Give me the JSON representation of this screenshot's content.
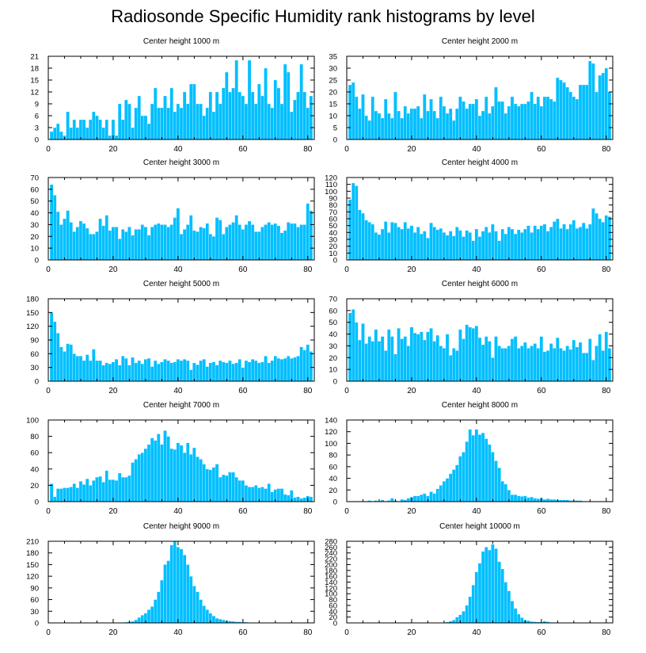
{
  "figure": {
    "title": "Radiosonde Specific Humidity rank histograms by level",
    "bar_color": "#00bfff"
  },
  "chart_data": [
    {
      "type": "bar",
      "title": "Center height 1000 m",
      "x_start": 1,
      "xlim": [
        0,
        82
      ],
      "xticks": [
        0,
        20,
        40,
        60,
        80
      ],
      "ylim": [
        0,
        21
      ],
      "yticks": [
        0,
        3,
        6,
        9,
        12,
        15,
        18,
        21
      ],
      "values": [
        2,
        3,
        4,
        2,
        1,
        7,
        3,
        5,
        3,
        5,
        5,
        3,
        5,
        7,
        6,
        5,
        3,
        5,
        1,
        5,
        1,
        9,
        5,
        10,
        9,
        3,
        8,
        11,
        6,
        6,
        4,
        9,
        13,
        8,
        8,
        11,
        8,
        13,
        7,
        9,
        8,
        12,
        9,
        14,
        14,
        9,
        9,
        6,
        8,
        12,
        7,
        12,
        9,
        13,
        17,
        12,
        13,
        20,
        12,
        11,
        9,
        20,
        12,
        9,
        14,
        11,
        18,
        9,
        8,
        15,
        13,
        9,
        19,
        17,
        7,
        10,
        12,
        19,
        12,
        8,
        11
      ],
      "display_values": []
    },
    {
      "type": "bar",
      "title": "Center height 2000 m",
      "x_start": 1,
      "xlim": [
        0,
        82
      ],
      "xticks": [
        0,
        20,
        40,
        60,
        80
      ],
      "ylim": [
        0,
        35
      ],
      "yticks": [
        0,
        5,
        10,
        15,
        20,
        25,
        30,
        35
      ],
      "values": [
        23,
        24,
        18,
        13,
        19,
        10,
        8,
        18,
        12,
        11,
        9,
        17,
        11,
        9,
        20,
        12,
        9,
        14,
        11,
        13,
        13,
        14,
        9,
        19,
        12,
        17,
        12,
        9,
        18,
        14,
        11,
        13,
        8,
        13,
        18,
        16,
        13,
        15,
        15,
        17,
        10,
        12,
        18,
        11,
        14,
        22,
        16,
        16,
        11,
        14,
        18,
        15,
        14,
        15,
        15,
        16,
        20,
        15,
        18,
        14,
        18,
        18,
        17,
        16,
        26,
        25,
        24,
        22,
        20,
        18,
        17,
        23,
        23,
        23,
        33,
        32,
        20,
        27,
        28,
        30,
        20
      ],
      "display_values": []
    },
    {
      "type": "bar",
      "title": "Center height 3000 m",
      "x_start": 1,
      "xlim": [
        0,
        82
      ],
      "xticks": [
        0,
        20,
        40,
        60,
        80
      ],
      "ylim": [
        0,
        70
      ],
      "yticks": [
        0,
        10,
        20,
        30,
        40,
        50,
        60,
        70
      ],
      "values": [
        64,
        55,
        41,
        30,
        35,
        42,
        32,
        24,
        28,
        33,
        31,
        27,
        22,
        22,
        24,
        35,
        29,
        38,
        25,
        28,
        28,
        18,
        26,
        24,
        28,
        21,
        26,
        26,
        30,
        28,
        21,
        28,
        30,
        31,
        30,
        30,
        28,
        30,
        36,
        44,
        22,
        26,
        30,
        38,
        25,
        24,
        28,
        27,
        31,
        22,
        20,
        36,
        34,
        22,
        28,
        30,
        32,
        38,
        30,
        26,
        30,
        33,
        30,
        24,
        24,
        28,
        30,
        32,
        30,
        31,
        29,
        23,
        25,
        32,
        31,
        31,
        28,
        30,
        30,
        48,
        42
      ],
      "display_values": []
    },
    {
      "type": "bar",
      "title": "Center height 4000 m",
      "x_start": 1,
      "xlim": [
        0,
        82
      ],
      "xticks": [
        0,
        20,
        40,
        60,
        80
      ],
      "ylim": [
        0,
        120
      ],
      "yticks": [
        0,
        10,
        20,
        30,
        40,
        50,
        60,
        70,
        80,
        90,
        100,
        110,
        120
      ],
      "values": [
        88,
        112,
        108,
        73,
        68,
        58,
        55,
        52,
        40,
        37,
        45,
        56,
        40,
        55,
        54,
        48,
        45,
        55,
        46,
        50,
        40,
        48,
        38,
        42,
        32,
        54,
        48,
        44,
        46,
        40,
        36,
        42,
        35,
        48,
        43,
        34,
        43,
        40,
        28,
        45,
        34,
        42,
        48,
        40,
        52,
        42,
        28,
        45,
        38,
        48,
        45,
        38,
        44,
        40,
        45,
        50,
        40,
        50,
        45,
        50,
        52,
        42,
        48,
        56,
        60,
        46,
        52,
        45,
        52,
        58,
        46,
        48,
        54,
        46,
        52,
        75,
        68,
        60,
        55,
        65,
        63
      ],
      "display_values": []
    },
    {
      "type": "bar",
      "title": "Center height 5000 m",
      "x_start": 1,
      "xlim": [
        0,
        82
      ],
      "xticks": [
        0,
        20,
        40,
        60,
        80
      ],
      "ylim": [
        0,
        180
      ],
      "yticks": [
        0,
        30,
        60,
        90,
        120,
        150,
        180
      ],
      "values": [
        150,
        130,
        105,
        75,
        65,
        82,
        80,
        60,
        55,
        55,
        45,
        58,
        45,
        70,
        45,
        45,
        35,
        40,
        38,
        42,
        48,
        35,
        55,
        50,
        35,
        52,
        40,
        45,
        38,
        48,
        50,
        32,
        45,
        38,
        42,
        48,
        45,
        40,
        42,
        48,
        45,
        48,
        45,
        25,
        40,
        36,
        45,
        48,
        32,
        40,
        42,
        35,
        45,
        42,
        40,
        45,
        38,
        40,
        48,
        30,
        45,
        42,
        48,
        45,
        40,
        42,
        55,
        40,
        45,
        55,
        50,
        48,
        50,
        55,
        50,
        52,
        55,
        75,
        68,
        80,
        65
      ],
      "display_values": []
    },
    {
      "type": "bar",
      "title": "Center height 6000 m",
      "x_start": 1,
      "xlim": [
        0,
        82
      ],
      "xticks": [
        0,
        20,
        40,
        60,
        80
      ],
      "ylim": [
        0,
        70
      ],
      "yticks": [
        0,
        10,
        20,
        30,
        40,
        50,
        60,
        70
      ],
      "values": [
        58,
        61,
        50,
        35,
        49,
        32,
        38,
        34,
        44,
        34,
        38,
        26,
        44,
        38,
        23,
        45,
        36,
        38,
        30,
        46,
        41,
        40,
        42,
        35,
        42,
        45,
        34,
        39,
        30,
        28,
        40,
        22,
        28,
        26,
        44,
        36,
        48,
        46,
        45,
        47,
        37,
        31,
        38,
        34,
        20,
        38,
        30,
        28,
        28,
        30,
        36,
        38,
        28,
        30,
        33,
        28,
        30,
        32,
        28,
        38,
        25,
        26,
        32,
        28,
        37,
        28,
        26,
        30,
        27,
        35,
        29,
        33,
        24,
        24,
        36,
        18,
        30,
        40,
        26,
        42,
        28
      ],
      "display_values": []
    },
    {
      "type": "bar",
      "title": "Center height 7000 m",
      "x_start": 1,
      "xlim": [
        0,
        82
      ],
      "xticks": [
        0,
        20,
        40,
        60,
        80
      ],
      "ylim": [
        0,
        100
      ],
      "yticks": [
        0,
        20,
        40,
        60,
        80,
        100
      ],
      "values": [
        22,
        6,
        16,
        16,
        17,
        17,
        18,
        22,
        17,
        25,
        21,
        28,
        20,
        26,
        30,
        31,
        24,
        38,
        27,
        27,
        26,
        35,
        30,
        30,
        32,
        48,
        52,
        58,
        60,
        65,
        70,
        78,
        75,
        83,
        70,
        87,
        80,
        65,
        64,
        72,
        69,
        60,
        72,
        58,
        66,
        55,
        52,
        46,
        40,
        39,
        42,
        46,
        30,
        33,
        32,
        36,
        36,
        30,
        26,
        26,
        20,
        18,
        18,
        20,
        17,
        18,
        16,
        22,
        12,
        15,
        16,
        16,
        9,
        8,
        14,
        5,
        6,
        4,
        5,
        7,
        6
      ],
      "display_values": []
    },
    {
      "type": "bar",
      "title": "Center height 8000 m",
      "x_start": 1,
      "xlim": [
        0,
        82
      ],
      "xticks": [
        0,
        20,
        40,
        60,
        80
      ],
      "ylim": [
        0,
        140
      ],
      "yticks": [
        0,
        20,
        40,
        60,
        80,
        100,
        120,
        140
      ],
      "values": [
        1,
        1,
        1,
        1,
        1,
        1,
        2,
        1,
        2,
        1,
        3,
        1,
        2,
        6,
        2,
        1,
        4,
        3,
        6,
        8,
        10,
        10,
        12,
        14,
        10,
        17,
        14,
        22,
        28,
        35,
        40,
        48,
        55,
        63,
        78,
        85,
        103,
        124,
        114,
        124,
        115,
        118,
        108,
        98,
        85,
        70,
        58,
        35,
        30,
        20,
        12,
        12,
        10,
        9,
        10,
        7,
        8,
        6,
        5,
        6,
        4,
        5,
        4,
        4,
        3,
        3,
        3,
        3,
        2,
        2,
        2,
        2,
        1,
        1,
        1,
        1,
        1,
        1,
        1,
        1,
        1
      ],
      "display_values": []
    },
    {
      "type": "bar",
      "title": "Center height 9000 m",
      "x_start": 1,
      "xlim": [
        0,
        82
      ],
      "xticks": [
        0,
        20,
        40,
        60,
        80
      ],
      "ylim": [
        0,
        210
      ],
      "yticks": [
        0,
        30,
        60,
        90,
        120,
        150,
        180,
        210
      ],
      "values": [
        0,
        0,
        0,
        0,
        0,
        0,
        0,
        0,
        0,
        0,
        0,
        0,
        0,
        0,
        0,
        0,
        0,
        0,
        0,
        0,
        1,
        1,
        1,
        2,
        3,
        4,
        8,
        14,
        20,
        25,
        34,
        42,
        60,
        80,
        110,
        150,
        160,
        200,
        210,
        195,
        190,
        175,
        150,
        120,
        95,
        80,
        60,
        44,
        34,
        25,
        18,
        12,
        10,
        8,
        6,
        5,
        4,
        3,
        3,
        2,
        2,
        1,
        1,
        1,
        1,
        1,
        0,
        0,
        0,
        0,
        0,
        0,
        0,
        0,
        0,
        0,
        0,
        0,
        0,
        0,
        0
      ],
      "display_values": []
    },
    {
      "type": "bar",
      "title": "Center height 10000 m",
      "x_start": 1,
      "xlim": [
        0,
        82
      ],
      "xticks": [
        0,
        20,
        40,
        60,
        80
      ],
      "ylim": [
        0,
        280
      ],
      "yticks": [
        0,
        20,
        40,
        60,
        80,
        100,
        120,
        140,
        160,
        180,
        200,
        220,
        240,
        260,
        280
      ],
      "values": [
        0,
        0,
        0,
        0,
        0,
        0,
        0,
        0,
        0,
        0,
        0,
        0,
        0,
        0,
        0,
        0,
        0,
        0,
        0,
        0,
        0,
        0,
        0,
        0,
        0,
        0,
        0,
        0,
        0,
        0,
        3,
        6,
        10,
        20,
        28,
        40,
        60,
        90,
        130,
        175,
        205,
        245,
        260,
        250,
        270,
        255,
        210,
        185,
        140,
        110,
        75,
        50,
        30,
        18,
        10,
        8,
        5,
        4,
        3,
        3,
        6,
        4,
        2,
        2,
        1,
        1,
        1,
        0,
        0,
        0,
        0,
        0,
        0,
        0,
        0,
        0,
        0,
        0,
        0,
        0,
        0
      ],
      "display_values": []
    }
  ]
}
